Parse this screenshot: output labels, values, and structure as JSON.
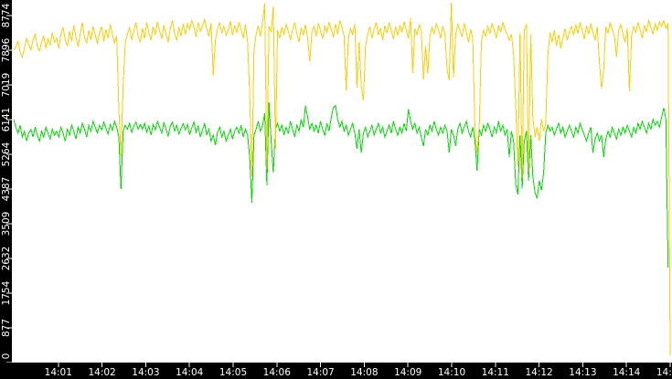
{
  "chart_data": {
    "type": "line",
    "title": "",
    "background_color": "#ffffff",
    "axis": {
      "band_color": "#000000",
      "text_color": "#ffffff",
      "tick_color": "#ffffff"
    },
    "x_axis": {
      "label": "",
      "start_time": "14:00",
      "minutes_per_tick": 1,
      "tick_labels": [
        "14:01",
        "14:02",
        "14:03",
        "14:04",
        "14:05",
        "14:06",
        "14:07",
        "14:08",
        "14:09",
        "14:10",
        "14:11",
        "14:12",
        "14:13",
        "14:14",
        "14:15"
      ],
      "range_minutes": [
        0,
        15.3
      ]
    },
    "y_axis": {
      "label": "",
      "tick_values": [
        0,
        877,
        1754,
        2632,
        3509,
        4387,
        5264,
        6141,
        7019,
        7896,
        8774
      ],
      "range": [
        0,
        9160
      ]
    },
    "sample_interval_minutes": 0.05,
    "series": [
      {
        "name": "series-green",
        "color": "#00dd00",
        "values": [
          6150,
          5950,
          5800,
          6000,
          5700,
          5850,
          5600,
          5800,
          5900,
          5700,
          5950,
          5750,
          5600,
          5850,
          5700,
          5950,
          5800,
          5650,
          5900,
          5750,
          5850,
          5700,
          5950,
          5800,
          5600,
          5900,
          5750,
          6000,
          5850,
          5650,
          5950,
          5800,
          6050,
          5900,
          5700,
          6000,
          5850,
          6100,
          5950,
          5800,
          6000,
          5880,
          6080,
          5920,
          5780,
          6020,
          5870,
          6100,
          5950,
          5700,
          4390,
          5850,
          6000,
          5900,
          6050,
          5820,
          5980,
          6080,
          5900,
          6020,
          5900,
          6050,
          5820,
          5980,
          5750,
          6020,
          5880,
          6100,
          5940,
          5800,
          6060,
          5900,
          5720,
          5980,
          6080,
          5850,
          6000,
          5780,
          5920,
          6040,
          5880,
          6020,
          5760,
          5940,
          6080,
          5820,
          5980,
          5700,
          5880,
          6040,
          5760,
          5900,
          5600,
          5750,
          5500,
          5820,
          5950,
          5700,
          5850,
          5600,
          5750,
          5900,
          5650,
          5850,
          5950,
          5800,
          6000,
          5700,
          5900,
          5750,
          5200,
          4040,
          5750,
          5900,
          6100,
          5850,
          6000,
          6300,
          4480,
          6580,
          5600,
          4800,
          5900,
          6050,
          5850,
          6000,
          5750,
          5950,
          5800,
          6100,
          5900,
          5700,
          6000,
          5850,
          6150,
          5950,
          6500,
          6200,
          5900,
          6050,
          5850,
          6000,
          5800,
          6100,
          5900,
          5750,
          6050,
          5850,
          6200,
          6450,
          6500,
          6150,
          5950,
          6100,
          5850,
          6000,
          5750,
          5900,
          6050,
          5800,
          5400,
          5900,
          5300,
          5800,
          5950,
          5700,
          5850,
          6000,
          5750,
          5900,
          6050,
          5800,
          5950,
          5700,
          5850,
          6000,
          5800,
          6100,
          5900,
          5750,
          5950,
          5800,
          6050,
          5850,
          6400,
          6100,
          5900,
          6050,
          5800,
          5950,
          5700,
          5470,
          5900,
          5750,
          6000,
          5850,
          6100,
          5900,
          5750,
          5950,
          5800,
          6000,
          5850,
          5310,
          5900,
          5750,
          5480,
          5900,
          6050,
          5800,
          5950,
          6100,
          5850,
          5700,
          5950,
          5600,
          4850,
          5900,
          5750,
          6000,
          5850,
          6050,
          5900,
          5700,
          5950,
          5800,
          6100,
          5850,
          6000,
          5750,
          5900,
          5200,
          5850,
          5600,
          4500,
          4250,
          5750,
          4400,
          5600,
          5850,
          4600,
          5750,
          4700,
          4300,
          4150,
          4600,
          4350,
          4800,
          5800,
          6000,
          5850,
          5950,
          5750,
          5900,
          6050,
          5800,
          5950,
          5700,
          5850,
          6000,
          5850,
          5700,
          5950,
          5800,
          6050,
          5900,
          5750,
          5600,
          5800,
          5950,
          5300,
          5650,
          5800,
          5600,
          5750,
          5200,
          5650,
          5850,
          5700,
          5950,
          5800,
          5650,
          5900,
          5750,
          5950,
          5800,
          6000,
          5850,
          5700,
          5950,
          5800,
          6050,
          5900,
          6100,
          5950,
          5800,
          6050,
          5900,
          6150,
          6000,
          6100,
          5950,
          6200,
          6440,
          6150,
          2400
        ]
      },
      {
        "name": "series-yellow",
        "color": "#ffcc00",
        "values": [
          7900,
          7980,
          8120,
          7850,
          7720,
          7950,
          8200,
          8050,
          7900,
          8150,
          8300,
          8000,
          7880,
          8100,
          8250,
          7950,
          8180,
          8020,
          8350,
          8100,
          8200,
          7950,
          8300,
          8480,
          8150,
          8000,
          8380,
          8120,
          8520,
          8250,
          7980,
          8300,
          8600,
          8220,
          8080,
          8400,
          8150,
          8500,
          8280,
          8060,
          8350,
          8500,
          8120,
          8420,
          8200,
          8550,
          8300,
          8080,
          8250,
          6400,
          5230,
          7000,
          8100,
          8300,
          8480,
          8150,
          8400,
          8600,
          8250,
          8100,
          8450,
          8200,
          8600,
          8350,
          8150,
          8500,
          8280,
          8620,
          8400,
          8180,
          8530,
          8300,
          8100,
          8450,
          8650,
          8320,
          8150,
          8480,
          8250,
          8560,
          8300,
          8570,
          8420,
          8650,
          8480,
          8230,
          8600,
          8370,
          8520,
          8680,
          8430,
          8250,
          8580,
          7260,
          8150,
          8420,
          8600,
          8330,
          8500,
          8270,
          8400,
          8630,
          8280,
          8510,
          8350,
          8600,
          8420,
          8200,
          8550,
          8100,
          6800,
          4700,
          7900,
          8300,
          8520,
          8250,
          8600,
          9080,
          4900,
          8500,
          8350,
          9000,
          5400,
          8400,
          8200,
          8480,
          8300,
          8550,
          8380,
          8150,
          8420,
          8600,
          8330,
          8100,
          8460,
          8280,
          8540,
          8200,
          7620,
          8350,
          8500,
          8250,
          8580,
          8400,
          8180,
          8520,
          8350,
          8600,
          8430,
          8220,
          8560,
          8300,
          8650,
          8480,
          8260,
          6880,
          8200,
          8450,
          8300,
          8560,
          6950,
          8100,
          7000,
          6630,
          8000,
          8300,
          8500,
          8200,
          8420,
          8600,
          8280,
          8450,
          8150,
          8520,
          8330,
          8600,
          8400,
          8180,
          8490,
          8270,
          8530,
          8350,
          8620,
          8400,
          8200,
          8700,
          7320,
          8450,
          8280,
          8550,
          8370,
          7150,
          8000,
          7300,
          8250,
          8480,
          8300,
          8570,
          8420,
          8200,
          8500,
          8330,
          7400,
          7150,
          9100,
          7200,
          8300,
          8560,
          8400,
          8230,
          8580,
          8350,
          8100,
          8420,
          8200,
          5850,
          5310,
          6000,
          8100,
          8400,
          8250,
          8500,
          8320,
          8580,
          8400,
          8200,
          8530,
          8350,
          8600,
          8430,
          8300,
          8150,
          8300,
          7800,
          6500,
          4950,
          8350,
          4650,
          8400,
          8550,
          4800,
          8300,
          6200,
          5700,
          5950,
          5600,
          6150,
          5850,
          6050,
          7800,
          8350,
          8100,
          8400,
          8000,
          8300,
          7950,
          8200,
          8450,
          8150,
          8350,
          8500,
          8280,
          8550,
          8320,
          8600,
          8400,
          8180,
          8520,
          8300,
          8570,
          8350,
          8150,
          8480,
          7600,
          6930,
          7400,
          8500,
          8330,
          8600,
          8420,
          8250,
          7740,
          8400,
          8550,
          8300,
          8100,
          8450,
          6860,
          8250,
          8500,
          8350,
          8600,
          8420,
          8200,
          8530,
          8370,
          8650,
          8480,
          8300,
          8560,
          8400,
          8620,
          8500,
          8650,
          8450,
          8580,
          180
        ]
      }
    ]
  }
}
